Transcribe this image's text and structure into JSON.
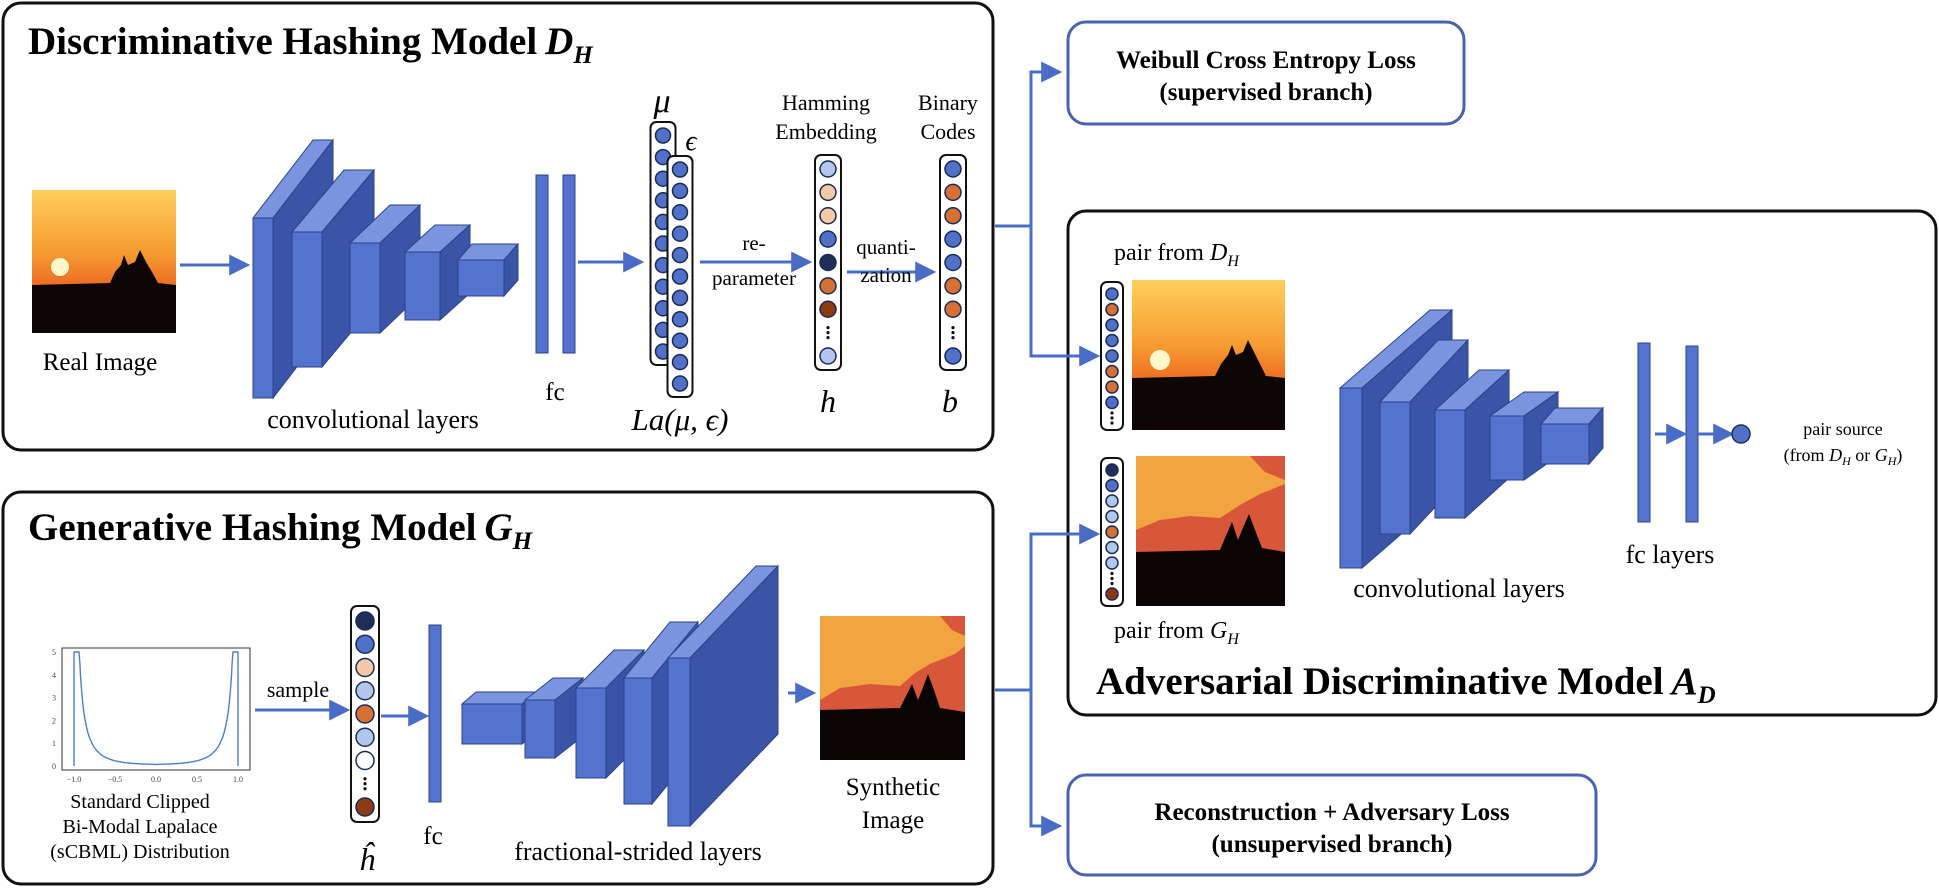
{
  "colors": {
    "accent": "#4a6cc9",
    "layer_front": "#5473cf",
    "layer_side": "#3a55a8",
    "layer_top": "#7a94e0",
    "border": "#111111",
    "loss_border": "#4a62b0",
    "node_dark_navy": "#1f2f5a",
    "node_blue": "#5170c8",
    "node_peach": "#f3c9a6",
    "node_light_blue": "#b3c6ec",
    "node_orange": "#d77133",
    "node_brown": "#8b3a12",
    "sunset_top": "#ffd766",
    "sunset_mid": "#f59a30",
    "sunset_low": "#e84a1a"
  },
  "dh": {
    "title": "Discriminative Hashing Model",
    "title_math": "D",
    "title_sub": "H",
    "image_label": "Real Image",
    "conv_label": "convolutional layers",
    "fc_label": "fc",
    "mu_symbol": "μ",
    "eps_symbol": "ϵ",
    "la_label": "La(μ, ϵ)",
    "reparam_label_1": "re-",
    "reparam_label_2": "parameter",
    "hamming_label_1": "Hamming",
    "hamming_label_2": "Embedding",
    "h_symbol": "h",
    "quant_label_1": "quanti-",
    "quant_label_2": "zation",
    "binary_label_1": "Binary",
    "binary_label_2": "Codes",
    "b_symbol": "b"
  },
  "gh": {
    "title": "Generative Hashing Model",
    "title_math": "G",
    "title_sub": "H",
    "dist_label_1": "Standard Clipped",
    "dist_label_2": "Bi-Modal Lapalace",
    "dist_label_3": "(sCBML) Distribution",
    "sample_label": "sample",
    "hhat_symbol": "ĥ",
    "fc_label": "fc",
    "frac_label": "fractional-strided layers",
    "synthetic_label_1": "Synthetic",
    "synthetic_label_2": "Image"
  },
  "ad": {
    "title": "Adversarial Discriminative Model",
    "title_math": "A",
    "title_sub": "D",
    "pair_dh_label": "pair from",
    "pair_dh_math": "D",
    "pair_dh_sub": "H",
    "pair_gh_label": "pair from",
    "pair_gh_math": "G",
    "pair_gh_sub": "H",
    "conv_label": "convolutional layers",
    "fc_label": "fc layers",
    "source_label_1": "pair source",
    "source_label_2a": "(from ",
    "source_label_2b": "D",
    "source_label_2c": "H",
    "source_label_2d": " or ",
    "source_label_2e": "G",
    "source_label_2f": "H",
    "source_label_2g": ")"
  },
  "loss": {
    "weibull_1": "Weibull Cross Entropy Loss",
    "weibull_2": "(supervised branch)",
    "recon_1": "Reconstruction + Adversary Loss",
    "recon_2": "(unsupervised branch)"
  },
  "plot": {
    "yticks": [
      "5",
      "4",
      "3",
      "2",
      "1",
      "0"
    ],
    "xticks": [
      "−1.0",
      "−0.5",
      "0.0",
      "0.5",
      "1.0"
    ]
  }
}
